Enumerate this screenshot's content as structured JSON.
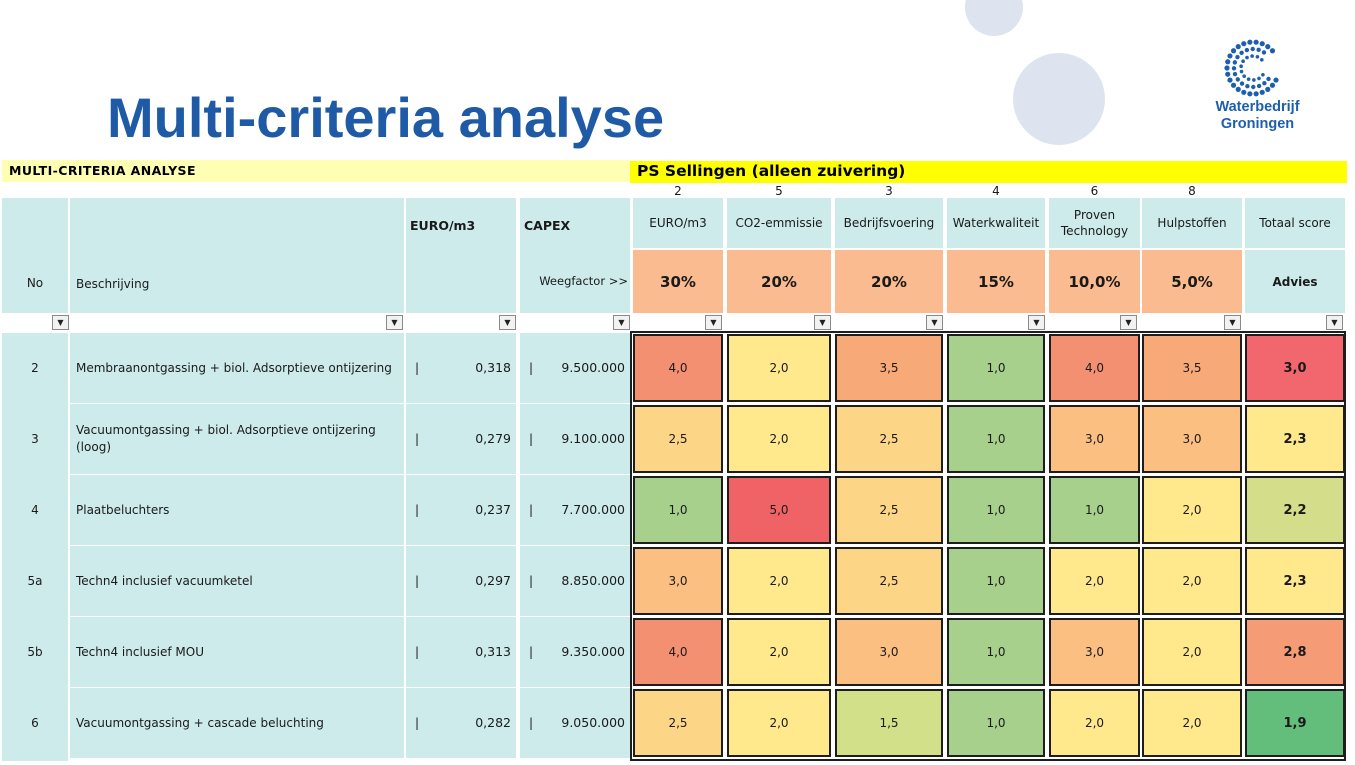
{
  "slide": {
    "title": "Multi-criteria analyse",
    "logo": {
      "line1": "Waterbedrijf",
      "line2": "Groningen",
      "brand_color": "#1d5fae"
    }
  },
  "sheet": {
    "section_label": "MULTI-CRITERIA ANALYSE",
    "station_label": "PS Sellingen (alleen zuivering)",
    "headers": {
      "no": "No",
      "description": "Beschrijving",
      "euro": "EURO/m3",
      "capex": "CAPEX",
      "weight_label": "Weegfactor >>",
      "total": "Totaal score",
      "advice": "Advies"
    },
    "criteria": [
      {
        "rank": "2",
        "name": "EURO/m3",
        "weight": "30%"
      },
      {
        "rank": "5",
        "name": "CO2-emmissie",
        "weight": "20%"
      },
      {
        "rank": "3",
        "name": "Bedrijfsvoering",
        "weight": "20%"
      },
      {
        "rank": "4",
        "name": "Waterkwaliteit",
        "weight": "15%"
      },
      {
        "rank": "6",
        "name": "Proven Technology",
        "weight": "10,0%"
      },
      {
        "rank": "8",
        "name": "Hulpstoffen",
        "weight": "5,0%"
      }
    ],
    "filter_icon": "dropdown-arrow",
    "rows": [
      {
        "no": "2",
        "desc": "Membraanontgassing + biol. Adsorptieve ontijzering",
        "euro": "0,318",
        "capex": "9.500.000",
        "scores": [
          "4,0",
          "2,0",
          "3,5",
          "1,0",
          "4,0",
          "3,5"
        ],
        "total": "3,0"
      },
      {
        "no": "3",
        "desc": "Vacuumontgassing + biol. Adsorptieve ontijzering (loog)",
        "euro": "0,279",
        "capex": "9.100.000",
        "scores": [
          "2,5",
          "2,0",
          "2,5",
          "1,0",
          "3,0",
          "3,0"
        ],
        "total": "2,3"
      },
      {
        "no": "4",
        "desc": "Plaatbeluchters",
        "euro": "0,237",
        "capex": "7.700.000",
        "scores": [
          "1,0",
          "5,0",
          "2,5",
          "1,0",
          "1,0",
          "2,0"
        ],
        "total": "2,2"
      },
      {
        "no": "5a",
        "desc": "Techn4 inclusief vacuumketel",
        "euro": "0,297",
        "capex": "8.850.000",
        "scores": [
          "3,0",
          "2,0",
          "2,5",
          "1,0",
          "2,0",
          "2,0"
        ],
        "total": "2,3"
      },
      {
        "no": "5b",
        "desc": "Techn4 inclusief MOU",
        "euro": "0,313",
        "capex": "9.350.000",
        "scores": [
          "4,0",
          "2,0",
          "3,0",
          "1,0",
          "3,0",
          "2,0"
        ],
        "total": "2,8"
      },
      {
        "no": "6",
        "desc": "Vacuumontgassing + cascade beluchting",
        "euro": "0,282",
        "capex": "9.050.000",
        "scores": [
          "2,5",
          "2,0",
          "1,5",
          "1,0",
          "2,0",
          "2,0"
        ],
        "total": "1,9"
      }
    ],
    "colors": {
      "score_scale": {
        "1,0": "#a8d08d",
        "1,5": "#d3e08a",
        "2,0": "#ffe98c",
        "2,5": "#fdd587",
        "3,0": "#fbbf81",
        "3,5": "#f8a978",
        "4,0": "#f49072",
        "5,0": "#ef6367"
      },
      "total_scale": {
        "3,0": "#f1676d",
        "2,3": "#ffe98c",
        "2,2": "#d3dd8a",
        "2,8": "#f59c76",
        "1,9": "#63be7b"
      },
      "header_fill": "#cdebeb",
      "weight_fill": "#f9bb8f",
      "title_color": "#1f5aa6"
    }
  }
}
